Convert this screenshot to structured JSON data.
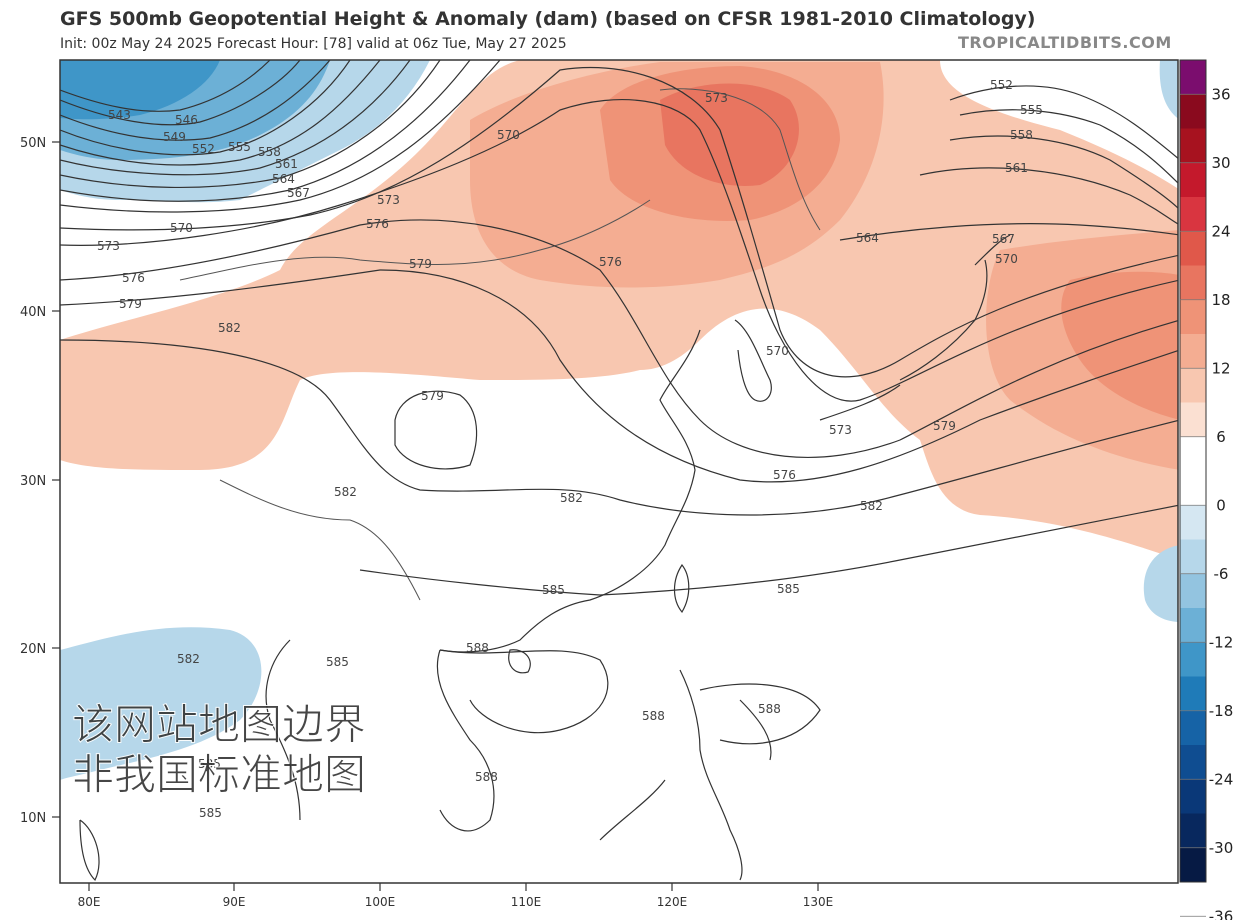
{
  "header": {
    "title": "GFS 500mb Geopotential Height & Anomaly (dam) (based on CFSR 1981-2010 Climatology)",
    "subtitle": "Init: 00z May 24 2025   Forecast Hour: [78]   valid at 06z Tue, May 27 2025",
    "source": "TROPICALTIDBITS.COM"
  },
  "map": {
    "lat_labels": [
      "50N",
      "40N",
      "30N",
      "20N",
      "10N"
    ],
    "lon_labels": [
      "80E",
      "90E",
      "100E",
      "110E",
      "120E",
      "130E"
    ],
    "contour_labels": [
      "543",
      "546",
      "549",
      "552",
      "555",
      "558",
      "561",
      "564",
      "567",
      "570",
      "573",
      "576",
      "579",
      "582",
      "585",
      "588",
      "552",
      "555",
      "558",
      "561",
      "564",
      "567",
      "570",
      "573",
      "576",
      "579",
      "582",
      "585",
      "588",
      "570",
      "573",
      "576",
      "579",
      "582",
      "585",
      "588",
      "579",
      "582",
      "588"
    ],
    "watermark_lines": [
      "该网站地图边界",
      "非我国标准地图"
    ]
  },
  "colorbar": {
    "ticks": [
      "36",
      "30",
      "24",
      "18",
      "12",
      "6",
      "0",
      "-6",
      "-12",
      "-18",
      "-24",
      "-30",
      "-36"
    ],
    "colors": [
      "#7b0d6e",
      "#8a0a1e",
      "#a7121f",
      "#c4192c",
      "#d93540",
      "#e0584a",
      "#e87560",
      "#ef9377",
      "#f4ad92",
      "#f8c7b0",
      "#fbe0d2",
      "#ffffff",
      "#ffffff",
      "#d5e7f2",
      "#b6d7ea",
      "#93c4e0",
      "#6cb0d6",
      "#3f96c8",
      "#1f7bb8",
      "#1663a6",
      "#0f4d91",
      "#0a3878",
      "#08285e",
      "#061a44"
    ]
  },
  "legend_words": {
    "anomaly_scale": "anomaly (dam)"
  }
}
